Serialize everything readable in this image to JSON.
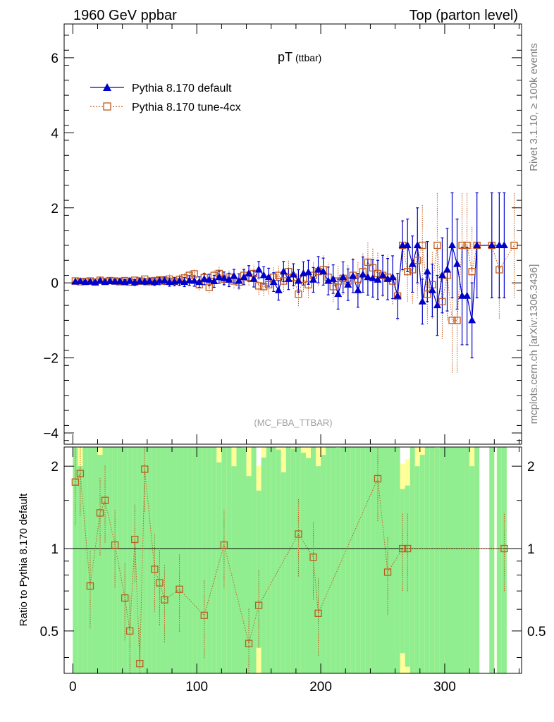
{
  "header": {
    "left_title": "1960 GeV ppbar",
    "right_title": "Top (parton level)"
  },
  "side_labels": {
    "rivet": "Rivet 3.1.10, ≥ 100k events",
    "mcplots": "mcplots.cern.ch [arXiv:1306.3436]"
  },
  "colors": {
    "default": "#0000cc",
    "tune": "#c05a1a",
    "band_green": "#90ee90",
    "band_yellow": "#ffff99"
  },
  "chart_data": [
    {
      "type": "line",
      "title": "pT",
      "title_suffix": "(ttbar)",
      "watermark": "(MC_FBA_TTBAR)",
      "xlabel": "",
      "ylabel": "",
      "xlim": [
        -7,
        362
      ],
      "ylim": [
        -4.3,
        6.9
      ],
      "x_ticks": [
        0,
        100,
        200,
        300
      ],
      "y_ticks": [
        -4,
        -2,
        0,
        2,
        4,
        6
      ],
      "y_tick_labels": [
        "−4",
        "−2",
        "0",
        "2",
        "4",
        "6"
      ],
      "legend_position": "top-left",
      "series": [
        {
          "name": "Pythia 8.170 default",
          "marker": "triangle",
          "points": [
            [
              2,
              0.03,
              0.04
            ],
            [
              6,
              0.04,
              0.04
            ],
            [
              10,
              0.02,
              0.05
            ],
            [
              14,
              0.03,
              0.05
            ],
            [
              18,
              0.01,
              0.05
            ],
            [
              22,
              0.05,
              0.06
            ],
            [
              26,
              0.02,
              0.06
            ],
            [
              30,
              0.04,
              0.06
            ],
            [
              34,
              0.03,
              0.06
            ],
            [
              38,
              0.04,
              0.07
            ],
            [
              42,
              0.02,
              0.07
            ],
            [
              46,
              0.05,
              0.07
            ],
            [
              50,
              0.01,
              0.08
            ],
            [
              54,
              0.04,
              0.08
            ],
            [
              58,
              0.03,
              0.08
            ],
            [
              62,
              0.04,
              0.09
            ],
            [
              66,
              0.02,
              0.09
            ],
            [
              70,
              0.05,
              0.1
            ],
            [
              74,
              0.06,
              0.1
            ],
            [
              78,
              0.02,
              0.11
            ],
            [
              82,
              0.03,
              0.11
            ],
            [
              86,
              0.05,
              0.12
            ],
            [
              90,
              0.02,
              0.12
            ],
            [
              94,
              0.06,
              0.13
            ],
            [
              98,
              0.05,
              0.14
            ],
            [
              102,
              0.02,
              0.14
            ],
            [
              106,
              0.1,
              0.15
            ],
            [
              110,
              0.08,
              0.15
            ],
            [
              114,
              0.04,
              0.16
            ],
            [
              118,
              0.15,
              0.16
            ],
            [
              122,
              0.12,
              0.17
            ],
            [
              126,
              0.08,
              0.18
            ],
            [
              130,
              0.18,
              0.18
            ],
            [
              134,
              0.05,
              0.19
            ],
            [
              138,
              0.15,
              0.2
            ],
            [
              142,
              0.25,
              0.21
            ],
            [
              146,
              0.1,
              0.21
            ],
            [
              150,
              0.35,
              0.22
            ],
            [
              154,
              0.2,
              0.23
            ],
            [
              158,
              0.15,
              0.24
            ],
            [
              162,
              0.02,
              0.25
            ],
            [
              166,
              -0.2,
              0.26
            ],
            [
              170,
              0.3,
              0.27
            ],
            [
              174,
              0.1,
              0.28
            ],
            [
              178,
              0.22,
              0.29
            ],
            [
              182,
              0.05,
              0.3
            ],
            [
              186,
              0.25,
              0.31
            ],
            [
              190,
              0.28,
              0.32
            ],
            [
              194,
              0.08,
              0.33
            ],
            [
              198,
              0.35,
              0.35
            ],
            [
              202,
              0.3,
              0.36
            ],
            [
              206,
              0.05,
              0.37
            ],
            [
              210,
              0.1,
              0.38
            ],
            [
              214,
              -0.3,
              0.4
            ],
            [
              218,
              0.15,
              0.41
            ],
            [
              222,
              -0.05,
              0.42
            ],
            [
              226,
              0.18,
              0.44
            ],
            [
              230,
              -0.2,
              0.45
            ],
            [
              234,
              0.22,
              0.47
            ],
            [
              238,
              0.15,
              0.48
            ],
            [
              242,
              0.12,
              0.5
            ],
            [
              246,
              0.08,
              0.52
            ],
            [
              250,
              0.2,
              0.53
            ],
            [
              254,
              0.1,
              0.55
            ],
            [
              258,
              0.15,
              0.57
            ],
            [
              262,
              -0.35,
              0.6
            ],
            [
              266,
              1,
              0.65
            ],
            [
              270,
              1,
              0.7
            ],
            [
              274,
              0.5,
              0.75
            ],
            [
              278,
              1,
              1
            ],
            [
              282,
              -0.5,
              0.6
            ],
            [
              286,
              0.3,
              0.8
            ],
            [
              290,
              -0.2,
              0.7
            ],
            [
              294,
              -0.6,
              0.8
            ],
            [
              298,
              0.2,
              1
            ],
            [
              302,
              0.35,
              1.1
            ],
            [
              306,
              1,
              1.4
            ],
            [
              310,
              0.5,
              1.2
            ],
            [
              314,
              -0.35,
              1.3
            ],
            [
              318,
              -0.35,
              1.3
            ],
            [
              322,
              -1,
              1
            ],
            [
              326,
              1,
              1.4
            ],
            [
              338,
              1,
              1.4
            ],
            [
              344,
              1,
              1.4
            ],
            [
              348,
              1,
              1.4
            ]
          ]
        },
        {
          "name": "Pythia 8.170 tune-4cx",
          "marker": "open-square",
          "points": [
            [
              2,
              0.05,
              0.05
            ],
            [
              6,
              0.03,
              0.05
            ],
            [
              10,
              0.04,
              0.05
            ],
            [
              14,
              0.05,
              0.06
            ],
            [
              18,
              0.02,
              0.06
            ],
            [
              22,
              0.07,
              0.06
            ],
            [
              26,
              0.04,
              0.07
            ],
            [
              30,
              0.06,
              0.07
            ],
            [
              34,
              0.05,
              0.07
            ],
            [
              38,
              0.03,
              0.08
            ],
            [
              42,
              0.06,
              0.08
            ],
            [
              46,
              0.02,
              0.08
            ],
            [
              50,
              0.07,
              0.09
            ],
            [
              54,
              0.05,
              0.09
            ],
            [
              58,
              0.1,
              0.09
            ],
            [
              62,
              0.03,
              0.1
            ],
            [
              66,
              0.06,
              0.1
            ],
            [
              70,
              0.08,
              0.11
            ],
            [
              74,
              0.05,
              0.11
            ],
            [
              78,
              0.1,
              0.12
            ],
            [
              82,
              0.04,
              0.12
            ],
            [
              86,
              0.09,
              0.13
            ],
            [
              90,
              0.13,
              0.13
            ],
            [
              94,
              0.2,
              0.14
            ],
            [
              98,
              0.24,
              0.14
            ],
            [
              102,
              -0.05,
              0.15
            ],
            [
              106,
              0.14,
              0.16
            ],
            [
              110,
              -0.12,
              0.16
            ],
            [
              114,
              0.2,
              0.17
            ],
            [
              118,
              0.25,
              0.18
            ],
            [
              122,
              0.1,
              0.18
            ],
            [
              126,
              0.15,
              0.19
            ],
            [
              130,
              0.05,
              0.2
            ],
            [
              134,
              0.02,
              0.21
            ],
            [
              138,
              0.2,
              0.22
            ],
            [
              142,
              0.15,
              0.22
            ],
            [
              146,
              0.25,
              0.23
            ],
            [
              150,
              -0.08,
              0.24
            ],
            [
              154,
              -0.1,
              0.25
            ],
            [
              158,
              -0.05,
              0.26
            ],
            [
              162,
              0.15,
              0.27
            ],
            [
              166,
              0.2,
              0.28
            ],
            [
              170,
              0.05,
              0.29
            ],
            [
              174,
              0.3,
              0.3
            ],
            [
              178,
              0.15,
              0.31
            ],
            [
              182,
              -0.3,
              0.32
            ],
            [
              186,
              0.1,
              0.34
            ],
            [
              190,
              -0.05,
              0.35
            ],
            [
              194,
              0.2,
              0.36
            ],
            [
              198,
              0.3,
              0.37
            ],
            [
              202,
              0.35,
              0.38
            ],
            [
              206,
              0.15,
              0.4
            ],
            [
              210,
              -0.1,
              0.41
            ],
            [
              214,
              0.05,
              0.42
            ],
            [
              218,
              0.12,
              0.44
            ],
            [
              222,
              0.05,
              0.45
            ],
            [
              226,
              0.2,
              0.47
            ],
            [
              230,
              0.1,
              0.48
            ],
            [
              234,
              0.3,
              0.5
            ],
            [
              238,
              0.55,
              0.52
            ],
            [
              242,
              0.4,
              0.53
            ],
            [
              246,
              0.25,
              0.55
            ],
            [
              250,
              0.2,
              0.57
            ],
            [
              254,
              0.15,
              0.6
            ],
            [
              258,
              0.05,
              0.62
            ],
            [
              262,
              -0.35,
              0.65
            ],
            [
              266,
              1,
              0.7
            ],
            [
              270,
              0.3,
              0.8
            ],
            [
              274,
              0.35,
              0.9
            ],
            [
              278,
              0.6,
              1
            ],
            [
              282,
              1,
              1.1
            ],
            [
              286,
              -0.3,
              0.8
            ],
            [
              290,
              -0.05,
              0.9
            ],
            [
              294,
              1,
              1.4
            ],
            [
              298,
              -0.5,
              1
            ],
            [
              302,
              0.2,
              1.2
            ],
            [
              306,
              -1,
              1.4
            ],
            [
              310,
              -1,
              1.4
            ],
            [
              314,
              1,
              1.4
            ],
            [
              318,
              1,
              1.4
            ],
            [
              322,
              0.3,
              1.2
            ],
            [
              326,
              1,
              1.4
            ],
            [
              338,
              1,
              1.4
            ],
            [
              344,
              0.35,
              1.3
            ],
            [
              356,
              1,
              1.4
            ]
          ]
        }
      ]
    },
    {
      "type": "line",
      "ylabel": "Ratio to Pythia 8.170 default",
      "ylim": [
        0.35,
        2.35
      ],
      "y_scale": "log",
      "y_ticks": [
        0.5,
        1,
        2
      ],
      "y_tick_labels": [
        "0.5",
        "1",
        "2"
      ],
      "reference_line": 1,
      "ratio_points": [
        [
          2,
          1.75
        ],
        [
          6,
          1.88
        ],
        [
          14,
          0.73
        ],
        [
          22,
          1.35
        ],
        [
          26,
          1.5
        ],
        [
          34,
          1.03
        ],
        [
          42,
          0.66
        ],
        [
          46,
          0.5
        ],
        [
          50,
          1.08
        ],
        [
          54,
          0.38
        ],
        [
          58,
          1.95
        ],
        [
          66,
          0.84
        ],
        [
          70,
          0.75
        ],
        [
          74,
          0.65
        ],
        [
          86,
          0.71
        ],
        [
          106,
          0.57
        ],
        [
          122,
          1.03
        ],
        [
          142,
          0.45
        ],
        [
          150,
          0.62
        ],
        [
          182,
          1.13
        ],
        [
          194,
          0.93
        ],
        [
          198,
          0.58
        ],
        [
          246,
          1.8
        ],
        [
          254,
          0.82
        ],
        [
          266,
          1
        ],
        [
          270,
          1
        ],
        [
          348,
          1
        ]
      ]
    }
  ]
}
